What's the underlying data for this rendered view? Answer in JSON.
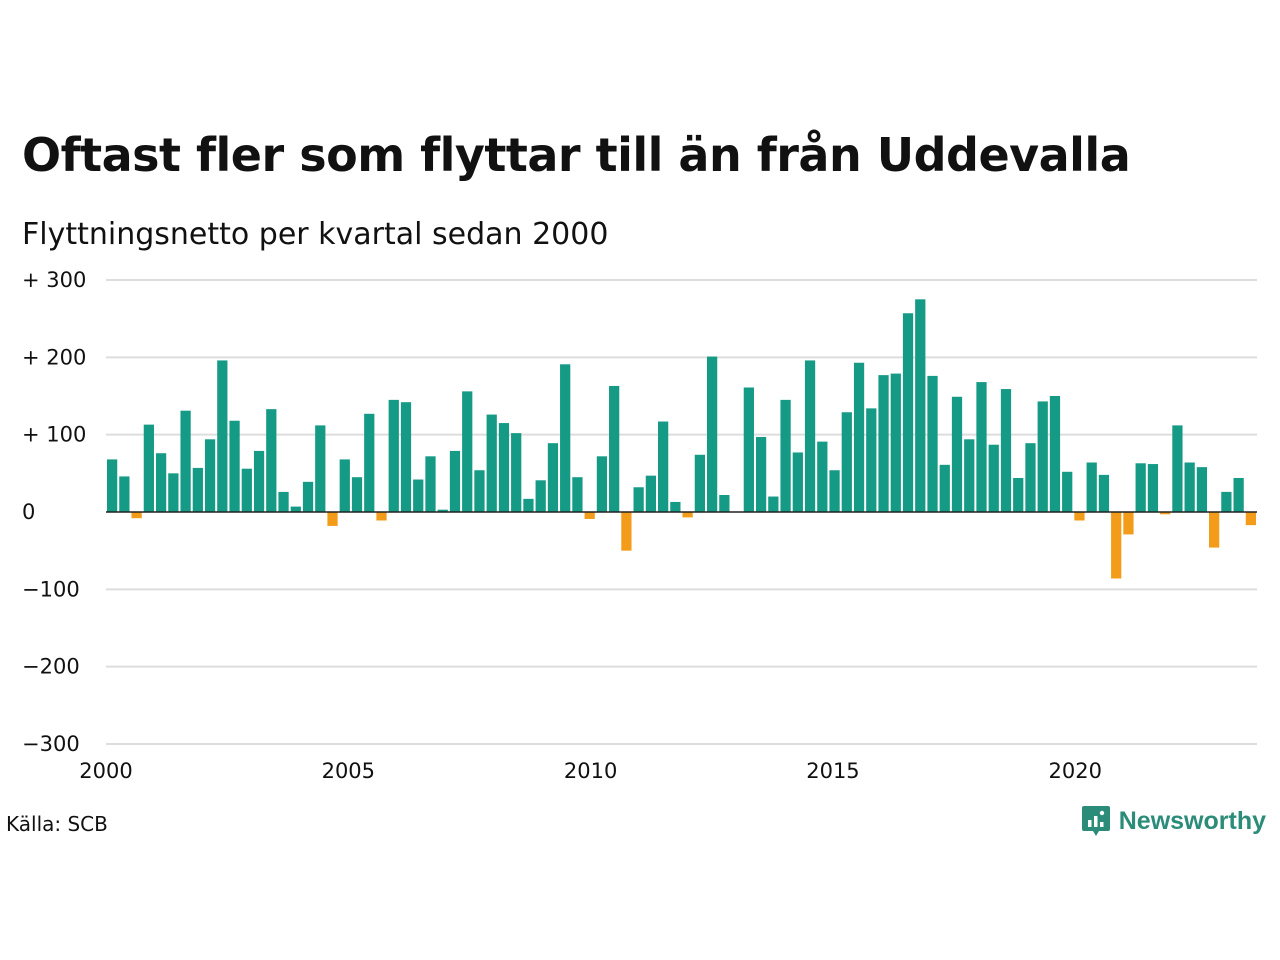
{
  "title": "Oftast fler som flyttar till än från Uddevalla",
  "subtitle": "Flyttningsnetto per kvartal sedan 2000",
  "source": "Källa: SCB",
  "brand": "Newsworthy",
  "colors": {
    "positive": "#159a85",
    "negative": "#f39c1a",
    "grid": "#dddddd",
    "zero": "#222222",
    "brand": "#2a8c79"
  },
  "chart_data": {
    "type": "bar",
    "xlim": [
      2000,
      2023.75
    ],
    "ylim": [
      -300,
      300
    ],
    "yticks": [
      {
        "value": 300,
        "label": "+ 300"
      },
      {
        "value": 200,
        "label": "+ 200"
      },
      {
        "value": 100,
        "label": "+ 100"
      },
      {
        "value": 0,
        "label": "0"
      },
      {
        "value": -100,
        "label": "−100"
      },
      {
        "value": -200,
        "label": "−200"
      },
      {
        "value": -300,
        "label": "−300"
      }
    ],
    "xticks": [
      {
        "value": 2000,
        "label": "2000"
      },
      {
        "value": 2005,
        "label": "2005"
      },
      {
        "value": 2010,
        "label": "2010"
      },
      {
        "value": 2015,
        "label": "2015"
      },
      {
        "value": 2020,
        "label": "2020"
      }
    ],
    "start": "2000 Q1",
    "values": [
      68,
      46,
      -8,
      113,
      76,
      50,
      131,
      57,
      94,
      196,
      118,
      56,
      79,
      133,
      26,
      7,
      39,
      112,
      -18,
      68,
      45,
      127,
      -11,
      145,
      142,
      42,
      72,
      3,
      79,
      156,
      54,
      126,
      115,
      102,
      17,
      41,
      89,
      191,
      45,
      -9,
      72,
      163,
      -50,
      32,
      47,
      117,
      13,
      -7,
      74,
      201,
      22,
      0,
      161,
      97,
      20,
      145,
      77,
      196,
      91,
      54,
      129,
      193,
      134,
      177,
      179,
      257,
      275,
      176,
      61,
      149,
      94,
      168,
      87,
      159,
      44,
      89,
      143,
      150,
      52,
      -11,
      64,
      48,
      -86,
      -29,
      63,
      62,
      -3,
      112,
      64,
      58,
      -46,
      26,
      44,
      -17
    ]
  }
}
